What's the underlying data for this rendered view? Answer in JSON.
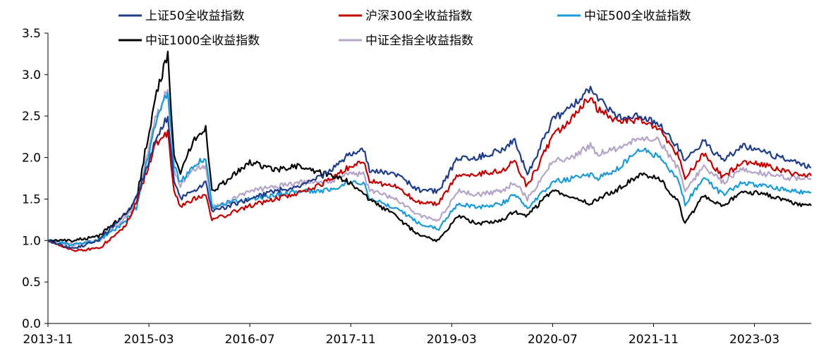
{
  "chart_data": {
    "type": "line",
    "title": "",
    "xlabel": "",
    "ylabel": "",
    "ylim": [
      0,
      3.5
    ],
    "yticks": [
      "0.0",
      "0.5",
      "1.0",
      "1.5",
      "2.0",
      "2.5",
      "3.0",
      "3.5"
    ],
    "xticks": [
      "2013-11",
      "2015-03",
      "2016-07",
      "2017-11",
      "2019-03",
      "2020-07",
      "2021-11",
      "2023-03"
    ],
    "x_range": [
      "2013-11",
      "2023-12"
    ],
    "grid": false,
    "legend_position": "top",
    "series": [
      {
        "name": "上证50全收益指数",
        "color": "#1f3c88",
        "x": [
          "2013-11",
          "2014-03",
          "2014-07",
          "2014-11",
          "2015-01",
          "2015-04",
          "2015-06",
          "2015-07",
          "2015-08",
          "2015-10",
          "2015-12",
          "2016-01",
          "2016-03",
          "2016-07",
          "2016-11",
          "2017-03",
          "2017-07",
          "2017-11",
          "2018-01",
          "2018-02",
          "2018-06",
          "2018-10",
          "2019-01",
          "2019-04",
          "2019-07",
          "2019-11",
          "2020-01",
          "2020-03",
          "2020-07",
          "2020-10",
          "2021-01",
          "2021-02",
          "2021-05",
          "2021-09",
          "2021-12",
          "2022-03",
          "2022-04",
          "2022-07",
          "2022-10",
          "2023-01",
          "2023-05",
          "2023-09",
          "2023-12"
        ],
        "values": [
          1.0,
          0.9,
          1.0,
          1.3,
          1.5,
          2.2,
          2.5,
          1.7,
          1.5,
          1.6,
          1.7,
          1.35,
          1.4,
          1.5,
          1.6,
          1.65,
          1.8,
          2.05,
          2.1,
          1.85,
          1.8,
          1.6,
          1.6,
          2.0,
          2.0,
          2.1,
          2.2,
          1.8,
          2.45,
          2.6,
          2.85,
          2.75,
          2.5,
          2.5,
          2.4,
          2.1,
          1.95,
          2.2,
          1.95,
          2.15,
          2.05,
          1.95,
          1.88
        ]
      },
      {
        "name": "沪深300全收益指数",
        "color": "#c00000",
        "x": [
          "2013-11",
          "2014-03",
          "2014-07",
          "2014-11",
          "2015-01",
          "2015-04",
          "2015-06",
          "2015-07",
          "2015-08",
          "2015-10",
          "2015-12",
          "2016-01",
          "2016-03",
          "2016-07",
          "2016-11",
          "2017-03",
          "2017-07",
          "2017-11",
          "2018-01",
          "2018-02",
          "2018-06",
          "2018-10",
          "2019-01",
          "2019-04",
          "2019-07",
          "2019-11",
          "2020-01",
          "2020-03",
          "2020-07",
          "2020-10",
          "2021-01",
          "2021-02",
          "2021-05",
          "2021-09",
          "2021-12",
          "2022-03",
          "2022-04",
          "2022-07",
          "2022-10",
          "2023-01",
          "2023-05",
          "2023-09",
          "2023-12"
        ],
        "values": [
          1.0,
          0.88,
          0.9,
          1.15,
          1.45,
          2.15,
          2.3,
          1.6,
          1.4,
          1.5,
          1.55,
          1.25,
          1.3,
          1.42,
          1.5,
          1.58,
          1.7,
          1.9,
          1.95,
          1.72,
          1.65,
          1.45,
          1.45,
          1.8,
          1.8,
          1.85,
          1.95,
          1.65,
          2.25,
          2.45,
          2.75,
          2.6,
          2.45,
          2.45,
          2.35,
          2.0,
          1.75,
          2.05,
          1.75,
          1.95,
          1.9,
          1.8,
          1.78
        ]
      },
      {
        "name": "中证500全收益指数",
        "color": "#1a9ad6",
        "x": [
          "2013-11",
          "2014-03",
          "2014-07",
          "2014-11",
          "2015-01",
          "2015-04",
          "2015-06",
          "2015-07",
          "2015-08",
          "2015-10",
          "2015-12",
          "2016-01",
          "2016-03",
          "2016-07",
          "2016-11",
          "2017-03",
          "2017-07",
          "2017-11",
          "2018-01",
          "2018-02",
          "2018-06",
          "2018-10",
          "2019-01",
          "2019-04",
          "2019-07",
          "2019-11",
          "2020-01",
          "2020-03",
          "2020-07",
          "2020-10",
          "2021-01",
          "2021-02",
          "2021-05",
          "2021-09",
          "2021-12",
          "2022-03",
          "2022-04",
          "2022-07",
          "2022-10",
          "2023-01",
          "2023-05",
          "2023-09",
          "2023-12"
        ],
        "values": [
          1.0,
          0.95,
          1.0,
          1.2,
          1.4,
          2.4,
          2.8,
          1.9,
          1.7,
          1.9,
          2.0,
          1.4,
          1.45,
          1.5,
          1.55,
          1.6,
          1.6,
          1.7,
          1.7,
          1.5,
          1.4,
          1.2,
          1.15,
          1.45,
          1.4,
          1.45,
          1.55,
          1.4,
          1.7,
          1.75,
          1.8,
          1.75,
          1.85,
          2.1,
          2.0,
          1.7,
          1.45,
          1.75,
          1.55,
          1.7,
          1.65,
          1.6,
          1.58
        ]
      },
      {
        "name": "中证1000全收益指数",
        "color": "#000000",
        "x": [
          "2013-11",
          "2014-03",
          "2014-07",
          "2014-11",
          "2015-01",
          "2015-04",
          "2015-06",
          "2015-07",
          "2015-08",
          "2015-10",
          "2015-12",
          "2016-01",
          "2016-03",
          "2016-07",
          "2016-11",
          "2017-03",
          "2017-07",
          "2017-11",
          "2018-01",
          "2018-02",
          "2018-06",
          "2018-10",
          "2019-01",
          "2019-04",
          "2019-07",
          "2019-11",
          "2020-01",
          "2020-03",
          "2020-07",
          "2020-10",
          "2021-01",
          "2021-02",
          "2021-05",
          "2021-09",
          "2021-12",
          "2022-03",
          "2022-04",
          "2022-07",
          "2022-10",
          "2023-01",
          "2023-05",
          "2023-09",
          "2023-12"
        ],
        "values": [
          1.0,
          1.0,
          1.05,
          1.3,
          1.5,
          2.7,
          3.25,
          2.0,
          1.8,
          2.2,
          2.35,
          1.6,
          1.7,
          1.95,
          1.85,
          1.9,
          1.8,
          1.7,
          1.55,
          1.5,
          1.3,
          1.05,
          1.0,
          1.3,
          1.2,
          1.25,
          1.35,
          1.3,
          1.6,
          1.5,
          1.45,
          1.5,
          1.6,
          1.8,
          1.75,
          1.45,
          1.2,
          1.55,
          1.4,
          1.6,
          1.55,
          1.45,
          1.42
        ]
      },
      {
        "name": "中证全指全收益指数",
        "color": "#b4a4c8",
        "x": [
          "2013-11",
          "2014-03",
          "2014-07",
          "2014-11",
          "2015-01",
          "2015-04",
          "2015-06",
          "2015-07",
          "2015-08",
          "2015-10",
          "2015-12",
          "2016-01",
          "2016-03",
          "2016-07",
          "2016-11",
          "2017-03",
          "2017-07",
          "2017-11",
          "2018-01",
          "2018-02",
          "2018-06",
          "2018-10",
          "2019-01",
          "2019-04",
          "2019-07",
          "2019-11",
          "2020-01",
          "2020-03",
          "2020-07",
          "2020-10",
          "2021-01",
          "2021-02",
          "2021-05",
          "2021-09",
          "2021-12",
          "2022-03",
          "2022-04",
          "2022-07",
          "2022-10",
          "2023-01",
          "2023-05",
          "2023-09",
          "2023-12"
        ],
        "values": [
          1.0,
          0.95,
          1.0,
          1.25,
          1.45,
          2.45,
          2.85,
          1.85,
          1.65,
          1.85,
          1.9,
          1.4,
          1.45,
          1.6,
          1.65,
          1.7,
          1.7,
          1.8,
          1.8,
          1.6,
          1.5,
          1.3,
          1.25,
          1.6,
          1.55,
          1.6,
          1.7,
          1.5,
          1.95,
          2.0,
          2.15,
          2.05,
          2.1,
          2.25,
          2.2,
          1.85,
          1.6,
          1.9,
          1.7,
          1.85,
          1.8,
          1.75,
          1.75
        ]
      }
    ]
  }
}
